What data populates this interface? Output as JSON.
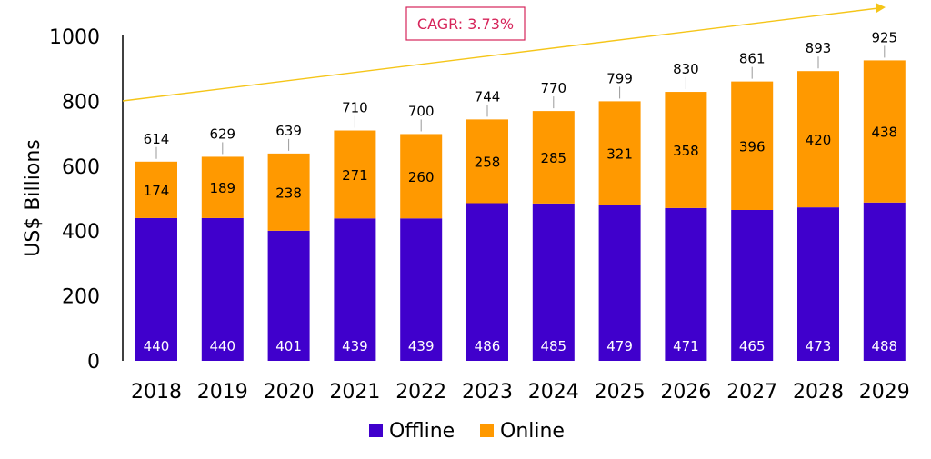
{
  "chart_data": {
    "type": "bar",
    "stacked": true,
    "categories": [
      "2018",
      "2019",
      "2020",
      "2021",
      "2022",
      "2023",
      "2024",
      "2025",
      "2026",
      "2027",
      "2028",
      "2029"
    ],
    "series": [
      {
        "name": "Offline",
        "values": [
          440,
          440,
          401,
          439,
          439,
          486,
          485,
          479,
          471,
          465,
          473,
          488
        ],
        "color": "#4000cc"
      },
      {
        "name": "Online",
        "values": [
          174,
          189,
          238,
          271,
          260,
          258,
          285,
          321,
          358,
          396,
          420,
          438
        ],
        "color": "#ff9900"
      }
    ],
    "totals": [
      614,
      629,
      639,
      710,
      700,
      744,
      770,
      799,
      830,
      861,
      893,
      925
    ],
    "ylabel": "US$ Billions",
    "ylim": [
      0,
      1000
    ],
    "yticks": [
      0,
      200,
      400,
      600,
      800,
      1000
    ],
    "annotation": {
      "text": "CAGR: 3.73%",
      "color": "#d6245a",
      "arrow_color": "#f5c518"
    },
    "legend": {
      "position": "bottom-center",
      "items": [
        "Offline",
        "Online"
      ]
    },
    "grid": false
  }
}
